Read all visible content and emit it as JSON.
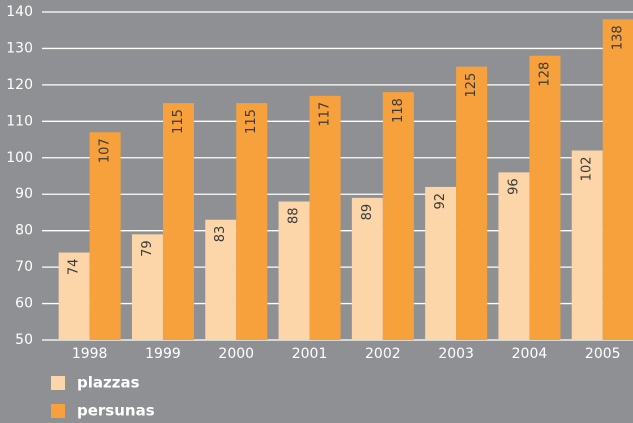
{
  "chart_data": {
    "type": "bar",
    "categories": [
      "1998",
      "1999",
      "2000",
      "2001",
      "2002",
      "2003",
      "2004",
      "2005"
    ],
    "series": [
      {
        "name": "plazzas",
        "color": "#fcd5a8",
        "values": [
          74,
          79,
          83,
          88,
          89,
          92,
          96,
          102
        ]
      },
      {
        "name": "persunas",
        "color": "#f7a13d",
        "values": [
          107,
          115,
          115,
          117,
          118,
          125,
          128,
          138
        ]
      }
    ],
    "ylim": [
      50,
      140
    ],
    "yticks": [
      50,
      60,
      70,
      80,
      90,
      100,
      110,
      120,
      130,
      140
    ],
    "grid": true,
    "legend": "bottom-left",
    "data_labels": true
  }
}
